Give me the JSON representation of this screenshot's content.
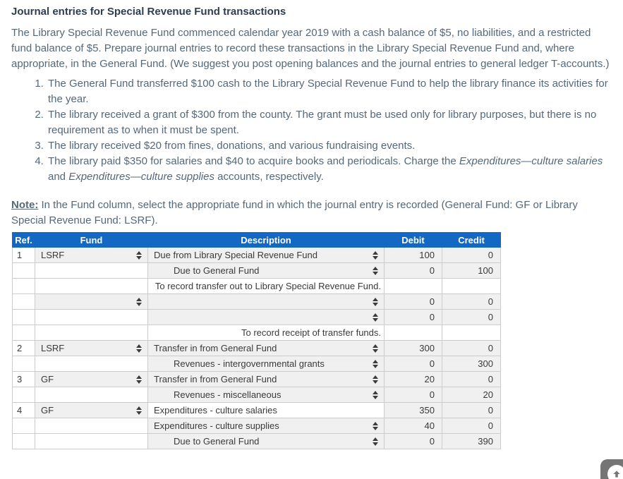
{
  "title": "Journal entries for Special Revenue Fund transactions",
  "intro": "The Library Special Revenue Fund commenced calendar year 2019 with a cash balance of $5, no liabilities, and a restricted fund balance of $5. Prepare journal entries to record these transactions in the Library Special Revenue Fund and, where appropriate, in the General Fund. (We suggest you post opening balances and the journal entries to general ledger T-accounts.)",
  "list": [
    {
      "segments": [
        {
          "text": "The General Fund transferred $100 cash to the Library Special Revenue Fund to help the library finance its activities for the year."
        }
      ]
    },
    {
      "segments": [
        {
          "text": "The library received a grant of $300 from the county. The grant must be used only for library purposes, but there is no requirement as to when it must be spent."
        }
      ]
    },
    {
      "segments": [
        {
          "text": "The library received $20 from fines, donations, and various fundraising events."
        }
      ]
    },
    {
      "segments": [
        {
          "text": "The library paid $350 for salaries and $40 to acquire books and periodicals. Charge the "
        },
        {
          "text": "Expenditures—culture salaries",
          "italic": true
        },
        {
          "text": " and "
        },
        {
          "text": "Expenditures—culture supplies",
          "italic": true
        },
        {
          "text": " accounts, respectively."
        }
      ]
    }
  ],
  "note": {
    "label": "Note:",
    "text": " In the Fund column, select the appropriate fund in which the journal entry is recorded (General Fund: GF or Library Special Revenue Fund: LSRF)."
  },
  "table": {
    "columns": [
      "Ref.",
      "Fund",
      "Description",
      "Debit",
      "Credit"
    ],
    "rows": [
      {
        "ref": "1",
        "fund": "LSRF",
        "fund_type": "select",
        "desc": "Due from Library Special Revenue Fund",
        "desc_type": "select",
        "indent": false,
        "debit": "100",
        "credit": "0"
      },
      {
        "ref": "",
        "fund": "",
        "fund_type": "none",
        "desc": "Due to General Fund",
        "desc_type": "select",
        "indent": true,
        "debit": "0",
        "credit": "100"
      },
      {
        "ref": "",
        "fund": "",
        "fund_type": "none",
        "desc": "To record transfer out to Library Special Revenue Fund.",
        "desc_type": "memo",
        "indent": false,
        "debit": "",
        "credit": ""
      },
      {
        "ref": "",
        "fund": "",
        "fund_type": "select",
        "desc": "",
        "desc_type": "select",
        "indent": false,
        "debit": "0",
        "credit": "0"
      },
      {
        "ref": "",
        "fund": "",
        "fund_type": "none",
        "desc": "",
        "desc_type": "select",
        "indent": false,
        "debit": "0",
        "credit": "0"
      },
      {
        "ref": "",
        "fund": "",
        "fund_type": "none",
        "desc": "To record receipt of transfer funds.",
        "desc_type": "memo",
        "indent": false,
        "debit": "",
        "credit": ""
      },
      {
        "ref": "2",
        "fund": "LSRF",
        "fund_type": "select",
        "desc": "Transfer in from General Fund",
        "desc_type": "select",
        "indent": false,
        "debit": "300",
        "credit": "0"
      },
      {
        "ref": "",
        "fund": "",
        "fund_type": "none",
        "desc": "Revenues - intergovernmental grants",
        "desc_type": "select",
        "indent": true,
        "debit": "0",
        "credit": "300"
      },
      {
        "ref": "3",
        "fund": "GF",
        "fund_type": "select",
        "desc": "Transfer in from General Fund",
        "desc_type": "select",
        "indent": false,
        "debit": "20",
        "credit": "0"
      },
      {
        "ref": "",
        "fund": "",
        "fund_type": "none",
        "desc": "Revenues - miscellaneous",
        "desc_type": "select",
        "indent": true,
        "debit": "0",
        "credit": "20"
      },
      {
        "ref": "4",
        "fund": "GF",
        "fund_type": "select",
        "desc": "Expenditures - culture salaries",
        "desc_type": "plain",
        "indent": false,
        "debit": "350",
        "credit": "0"
      },
      {
        "ref": "",
        "fund": "",
        "fund_type": "none",
        "desc": "Expenditures - culture supplies",
        "desc_type": "select",
        "indent": false,
        "debit": "40",
        "credit": "0"
      },
      {
        "ref": "",
        "fund": "",
        "fund_type": "none",
        "desc": "Due to General Fund",
        "desc_type": "select",
        "indent": true,
        "debit": "0",
        "credit": "390"
      }
    ]
  },
  "icons": {
    "stepper": "up-down-stepper",
    "scroll_top": "up-arrow"
  },
  "colors": {
    "header_bg": "#1268c2",
    "header_text": "#ffffff",
    "title_text": "#2d3e50",
    "body_text": "#54687c",
    "cell_text": "#3a3a3a",
    "select_bg": "#f0f0f0",
    "grid_border": "#cccccc",
    "memo_underline": "#2b2b2b",
    "scroll_button": "#757575"
  }
}
